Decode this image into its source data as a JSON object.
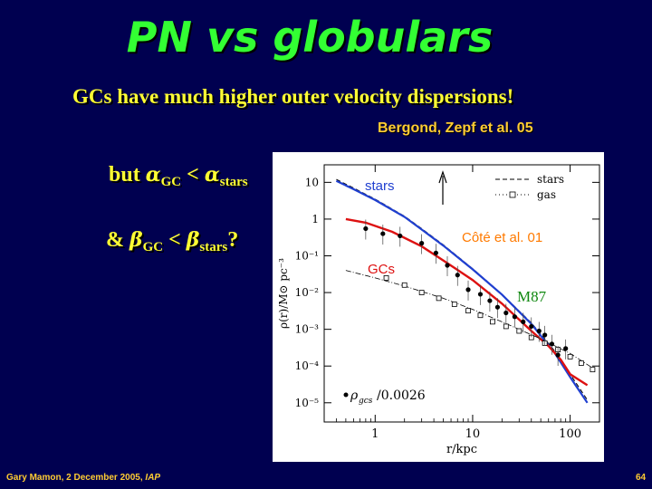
{
  "slide": {
    "title": "PN vs globulars",
    "subtitle": "GCs have much higher outer velocity dispersions!",
    "citation": "Bergond, Zepf et al. 05",
    "condition1": {
      "prefix": "but ",
      "symbol_left": "α",
      "sub_left": "GC",
      "relation": " < ",
      "symbol_right": "α",
      "sub_right": "stars"
    },
    "condition2": {
      "prefix": "& ",
      "symbol_left": "β",
      "sub_left": "GC",
      "relation": " < ",
      "symbol_right": "β",
      "sub_right": "stars",
      "suffix": "?"
    },
    "footer": {
      "author_date": "Gary Mamon, 2 December 2005, ",
      "institute": "IAP",
      "page_number": "64"
    }
  },
  "colors": {
    "background": "#000050",
    "title": "#33ff33",
    "text": "#ffff33",
    "citation": "#ffcc33",
    "stars_curve": "#1f3fd0",
    "gcs_curve": "#dd1111"
  },
  "chart_data": {
    "type": "line",
    "xscale": "log",
    "yscale": "log",
    "xlim": [
      0.3,
      200
    ],
    "ylim": [
      3e-06,
      30
    ],
    "xlabel": "r/kpc",
    "ylabel": "ρ(r)/M⊙ pc⁻³",
    "xticks": [
      {
        "value": 1,
        "label": "1"
      },
      {
        "value": 10,
        "label": "10"
      },
      {
        "value": 100,
        "label": "100"
      }
    ],
    "yticks": [
      {
        "value": 10,
        "label": "10"
      },
      {
        "value": 1,
        "label": "1"
      },
      {
        "value": 0.1,
        "label": "10⁻¹"
      },
      {
        "value": 0.01,
        "label": "10⁻²"
      },
      {
        "value": 0.001,
        "label": "10⁻³"
      },
      {
        "value": 0.0001,
        "label": "10⁻⁴"
      },
      {
        "value": 1e-05,
        "label": "10⁻⁵"
      }
    ],
    "legend": {
      "position": "top-right",
      "entries": [
        "stars",
        "gas"
      ]
    },
    "annotations": {
      "stars": "stars",
      "gcs": "GCs",
      "source": "Côté et al. 01",
      "galaxy": "M87",
      "gc_points": "ρ",
      "gc_points_sub": "gcs",
      "gc_points_scale": "/0.0026"
    },
    "series": [
      {
        "name": "stars",
        "style": "dashed",
        "x": [
          0.4,
          0.6,
          1,
          2,
          3,
          5,
          10,
          20,
          40,
          70,
          100,
          150
        ],
        "y": [
          12,
          7,
          3.5,
          1.2,
          0.55,
          0.2,
          0.045,
          0.009,
          0.0015,
          0.00025,
          6e-05,
          1.2e-05
        ]
      },
      {
        "name": "stars fit",
        "style": "solid",
        "x": [
          0.4,
          0.6,
          1,
          2,
          3,
          5,
          10,
          20,
          40,
          70,
          100,
          150
        ],
        "y": [
          11,
          6.5,
          3.3,
          1.15,
          0.52,
          0.19,
          0.043,
          0.0088,
          0.0014,
          0.00022,
          5e-05,
          1e-05
        ]
      },
      {
        "name": "GCs",
        "style": "solid",
        "x": [
          0.5,
          0.8,
          1.5,
          3,
          5,
          10,
          20,
          40,
          60,
          80,
          100,
          150
        ],
        "y": [
          1,
          0.8,
          0.45,
          0.18,
          0.075,
          0.022,
          0.005,
          0.0009,
          0.00035,
          0.00015,
          6e-05,
          3e-05
        ]
      },
      {
        "name": "gas",
        "style": "dash-dot",
        "x": [
          0.5,
          1,
          2,
          5,
          10,
          20,
          50,
          100,
          180
        ],
        "y": [
          0.04,
          0.025,
          0.015,
          0.007,
          0.0035,
          0.0016,
          0.00055,
          0.00022,
          8e-05
        ]
      },
      {
        "name": "gas points",
        "style": "squares",
        "x": [
          1.3,
          2,
          3,
          4.5,
          6.5,
          9,
          12,
          16,
          22,
          30,
          40,
          55,
          75,
          100,
          130,
          170
        ],
        "y": [
          0.025,
          0.016,
          0.01,
          0.007,
          0.0048,
          0.0032,
          0.0024,
          0.0016,
          0.0012,
          0.0009,
          0.0006,
          0.00042,
          0.00028,
          0.00018,
          0.00012,
          8e-05
        ]
      },
      {
        "name": "GC points",
        "style": "dots",
        "x": [
          0.8,
          1.2,
          1.8,
          3,
          4.2,
          5.5,
          7,
          9,
          12,
          15,
          18,
          22,
          27,
          33,
          40,
          48,
          55,
          65,
          75,
          90
        ],
        "y": [
          0.55,
          0.4,
          0.35,
          0.22,
          0.12,
          0.055,
          0.03,
          0.012,
          0.009,
          0.006,
          0.004,
          0.0028,
          0.0022,
          0.0016,
          0.0012,
          0.0009,
          0.0007,
          0.0004,
          0.0002,
          0.0003
        ]
      }
    ]
  }
}
